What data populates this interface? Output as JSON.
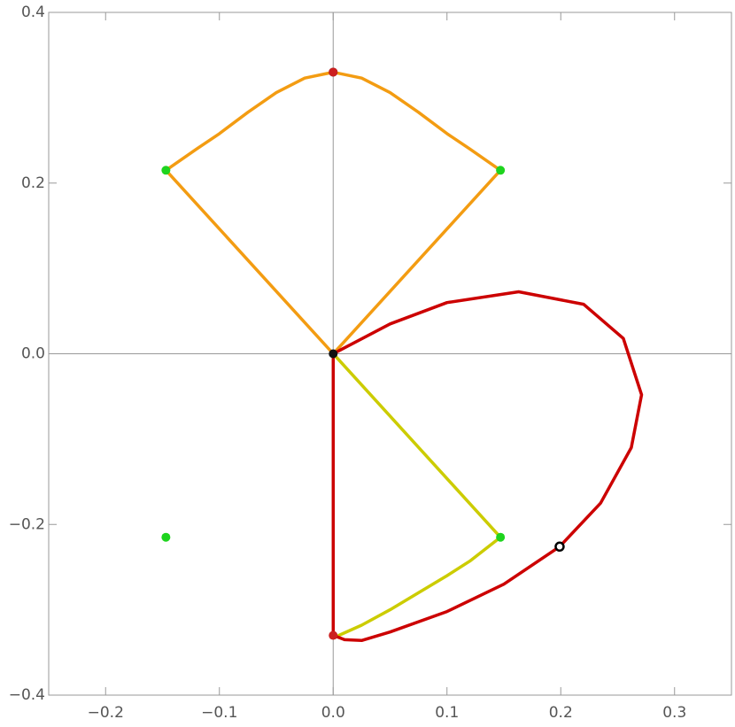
{
  "chart_data": {
    "type": "line",
    "xlim": [
      -0.25,
      0.35
    ],
    "ylim": [
      -0.4,
      0.4
    ],
    "xticks": [
      {
        "value": -0.2,
        "label": "−0.2"
      },
      {
        "value": -0.1,
        "label": "−0.1"
      },
      {
        "value": 0,
        "label": "0.0"
      },
      0.1,
      0.2,
      0.3
    ],
    "yticks": [
      {
        "value": -0.4,
        "label": "−0.4"
      },
      {
        "value": -0.2,
        "label": "−0.2"
      },
      {
        "value": 0,
        "label": "0.0"
      },
      0.2,
      0.4
    ],
    "axes_cross": [
      0,
      0
    ],
    "series": [
      {
        "color": "#f39c12",
        "x": [
          0,
          -0.147,
          -0.12,
          -0.1,
          -0.075,
          -0.05,
          -0.025,
          0,
          0.025,
          0.05,
          0.075,
          0.1,
          0.12,
          0.147,
          0
        ],
        "values": [
          0,
          0.215,
          0.24,
          0.258,
          0.283,
          0.306,
          0.323,
          0.33,
          0.323,
          0.306,
          0.283,
          0.258,
          0.24,
          0.215,
          0
        ]
      },
      {
        "color": "#cccc00",
        "x": [
          0,
          0.147,
          0.12,
          0.1,
          0.075,
          0.05,
          0.025,
          0.005
        ],
        "values": [
          0,
          -0.215,
          -0.243,
          -0.26,
          -0.28,
          -0.3,
          -0.318,
          -0.33
        ]
      },
      {
        "color": "#cc0000",
        "x": [
          0,
          0,
          0.05,
          0.1,
          0.163,
          0.22,
          0.255,
          0.271,
          0.262,
          0.235,
          0.199,
          0.15,
          0.1,
          0.05,
          0.025,
          0.01,
          0
        ],
        "values": [
          -0.33,
          0,
          0.035,
          0.06,
          0.0726,
          0.058,
          0.018,
          -0.048,
          -0.11,
          -0.175,
          -0.226,
          -0.27,
          -0.302,
          -0.326,
          -0.336,
          -0.335,
          -0.33
        ]
      }
    ],
    "points": [
      {
        "x": -0.147,
        "y": 0.215,
        "color": "#1ed41e"
      },
      {
        "x": 0.147,
        "y": 0.215,
        "color": "#1ed41e"
      },
      {
        "x": -0.147,
        "y": -0.215,
        "color": "#1ed41e"
      },
      {
        "x": 0.147,
        "y": -0.215,
        "color": "#1ed41e"
      },
      {
        "x": 0,
        "y": 0.33,
        "color": "#111111"
      },
      {
        "x": 0,
        "y": 0.33,
        "color": "#cc1f1f"
      },
      {
        "x": 0,
        "y": -0.33,
        "color": "#cc1f1f"
      },
      {
        "x": 0,
        "y": 0,
        "color": "#111111"
      },
      {
        "x": 0.199,
        "y": -0.226,
        "color": "#ffffff",
        "stroke": "#000000"
      }
    ]
  }
}
